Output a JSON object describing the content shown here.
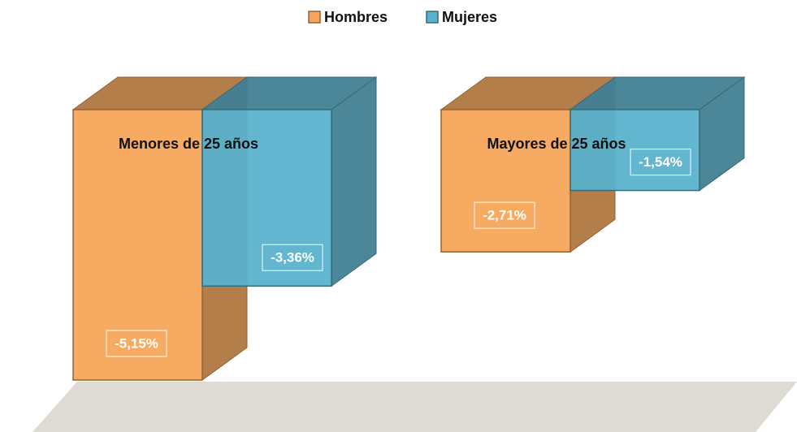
{
  "chart_data": {
    "type": "bar3d",
    "categories": [
      "Menores de 25 años",
      "Mayores de 25 años"
    ],
    "series": [
      {
        "name": "Hombres",
        "color": "#f5a55a",
        "values": [
          -5.15,
          -2.71
        ],
        "value_labels": [
          "-5,15%",
          "-2,71%"
        ]
      },
      {
        "name": "Mujeres",
        "color": "#5ab2cc",
        "values": [
          -3.36,
          -1.54
        ],
        "value_labels": [
          "-3,36%",
          "-1,54%"
        ]
      }
    ],
    "legend": "top"
  }
}
